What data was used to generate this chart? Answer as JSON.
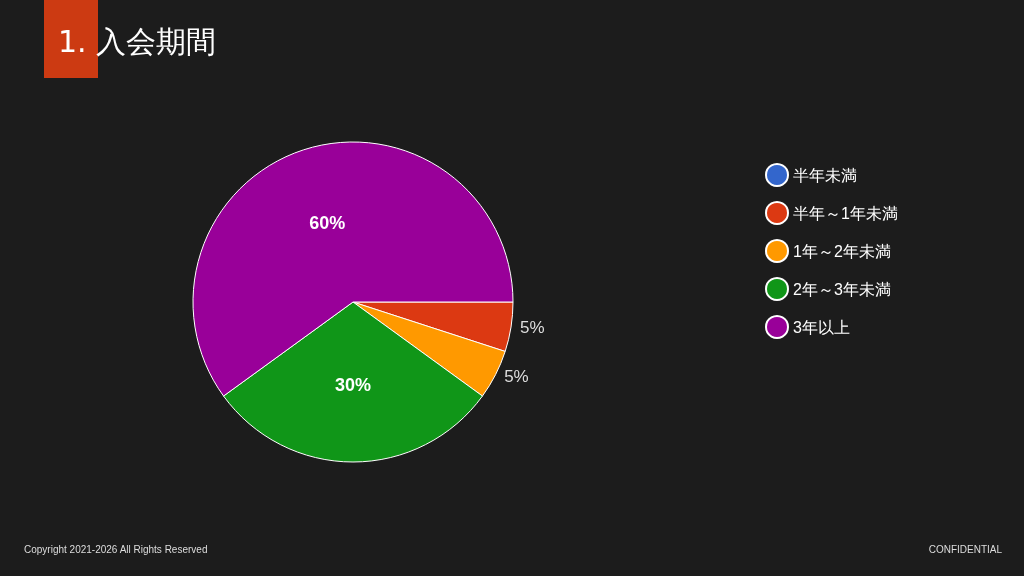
{
  "chart_data": {
    "type": "pie",
    "title": "1. 入会期間",
    "categories": [
      "半年未満",
      "半年～1年未満",
      "1年～2年未満",
      "2年～3年未満",
      "3年以上"
    ],
    "values": [
      0,
      5,
      5,
      30,
      60
    ],
    "colors": [
      "#3366cc",
      "#dc3912",
      "#ff9900",
      "#109618",
      "#990099"
    ],
    "value_labels": [
      null,
      "5%",
      "5%",
      "30%",
      "60%"
    ],
    "legend": "right",
    "annotations": [
      "Copyright 2021-2026 All Rights Reserved",
      "CONFIDENTIAL"
    ]
  }
}
